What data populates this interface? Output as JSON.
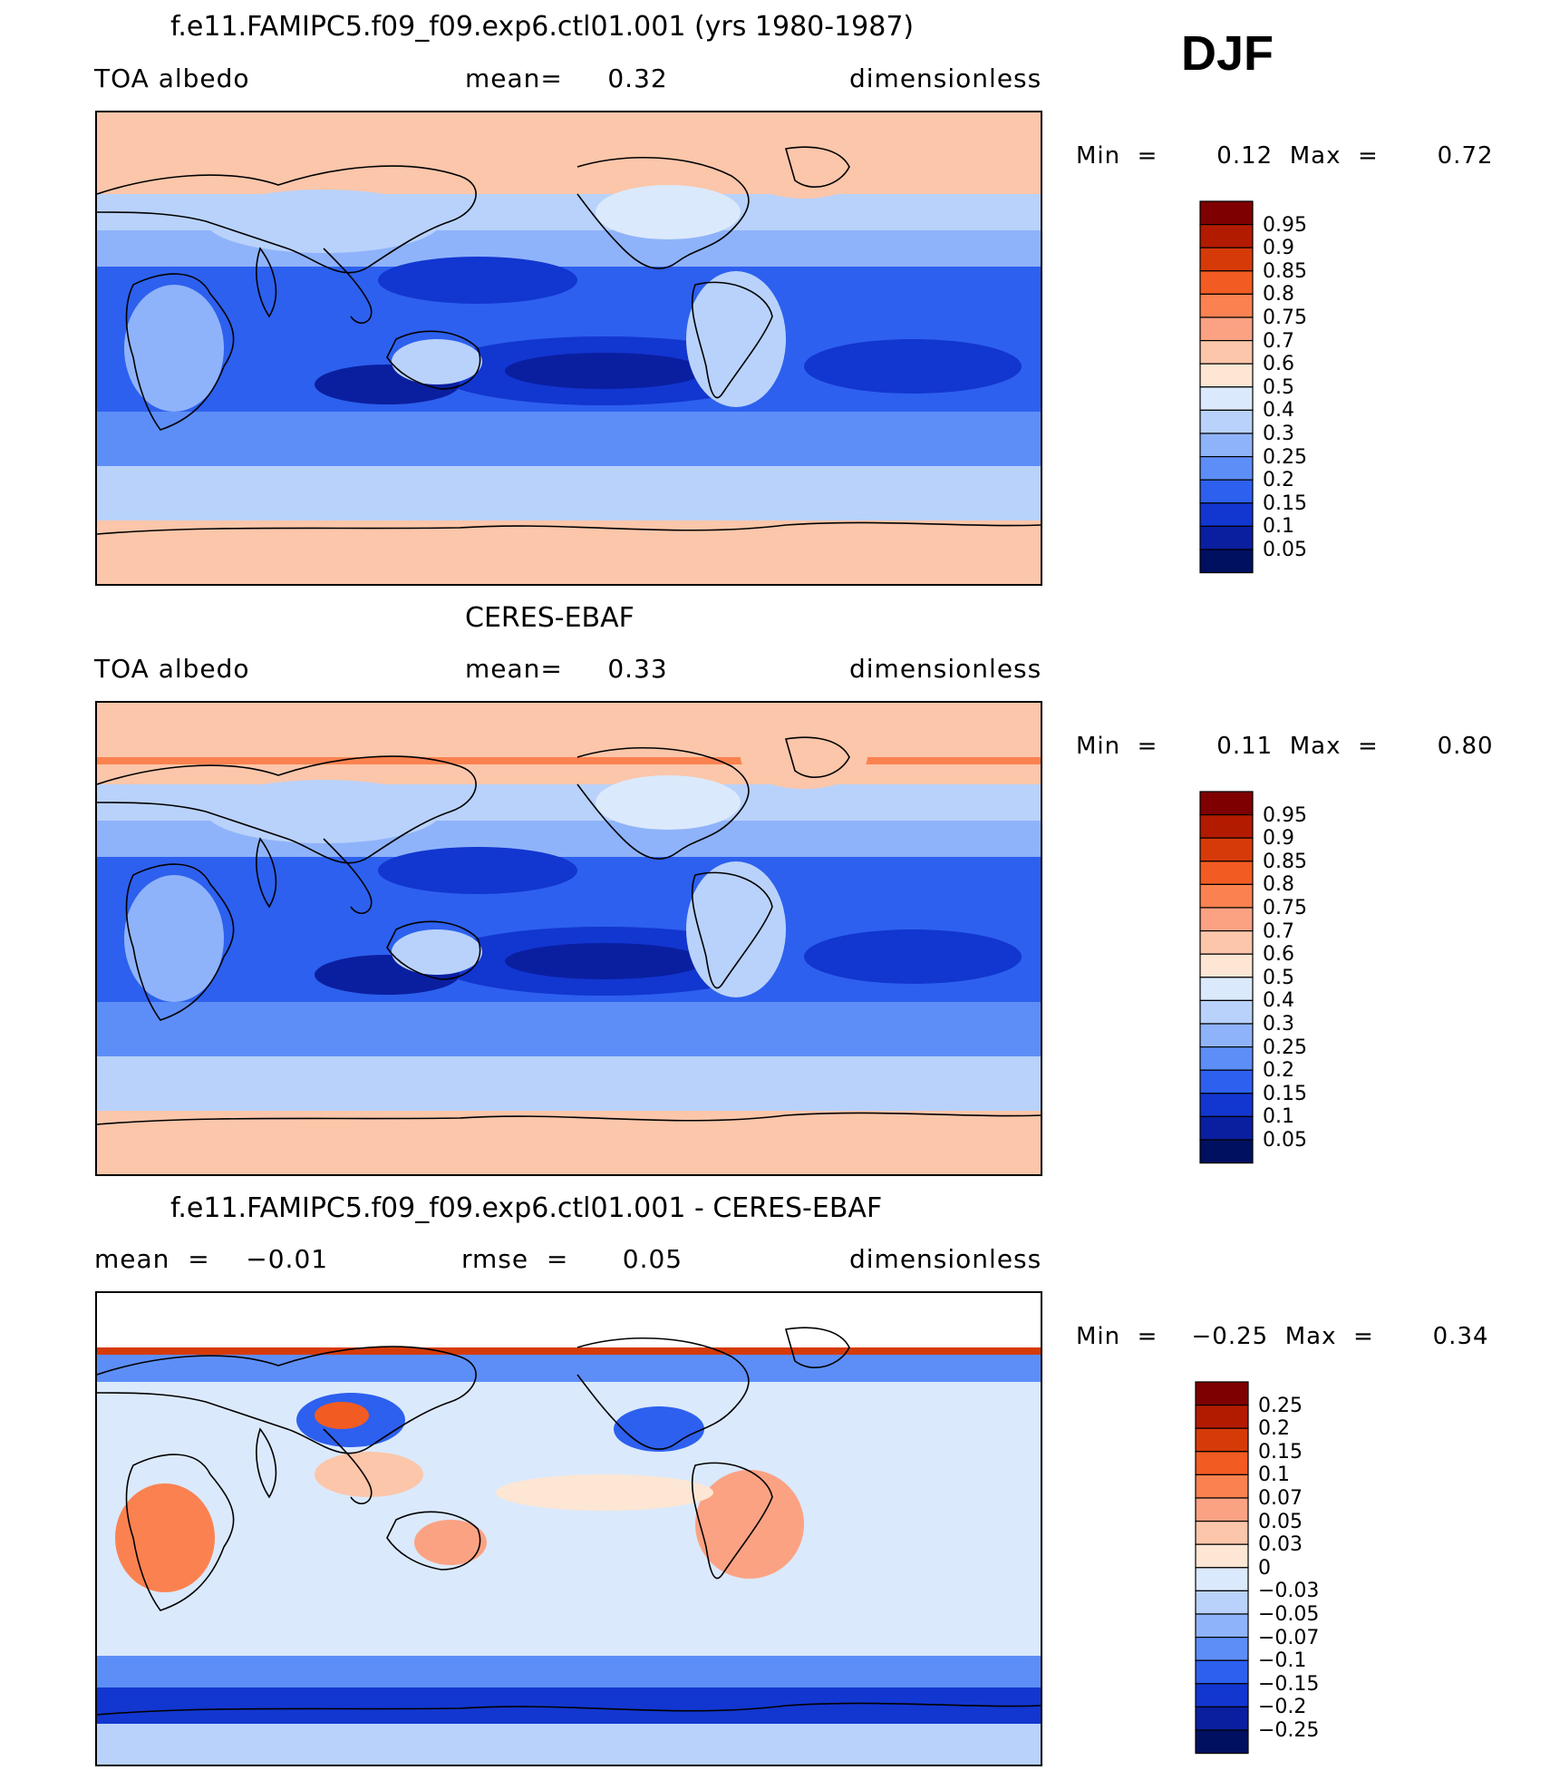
{
  "season": "DJF",
  "panels": [
    {
      "title": "f.e11.FAMIPC5.f09_f09.exp6.ctl01.001 (yrs 1980-1987)",
      "left_label": "TOA  albedo",
      "center_label": "mean=     0.32",
      "right_label": "dimensionless",
      "minmax": "Min  =       0.12  Max  =       0.72",
      "colorbar_labels": [
        "0.95",
        "0.9",
        "0.85",
        "0.8",
        "0.75",
        "0.7",
        "0.6",
        "0.5",
        "0.4",
        "0.3",
        "0.25",
        "0.2",
        "0.15",
        "0.1",
        "0.05"
      ],
      "colors": [
        "#7f0000",
        "#b31b00",
        "#d63a09",
        "#f25b22",
        "#fb8250",
        "#fba283",
        "#fbc6aa",
        "#fde6d3",
        "#dbe9fc",
        "#b9d2fb",
        "#8fb3fa",
        "#5d8ef7",
        "#2d60ee",
        "#1236d0",
        "#0a1fa0",
        "#001060"
      ],
      "regime": "albedo"
    },
    {
      "title": "CERES-EBAF",
      "left_label": "TOA  albedo",
      "center_label": "mean=     0.33",
      "right_label": "dimensionless",
      "minmax": "Min  =       0.11  Max  =       0.80",
      "colorbar_labels": [
        "0.95",
        "0.9",
        "0.85",
        "0.8",
        "0.75",
        "0.7",
        "0.6",
        "0.5",
        "0.4",
        "0.3",
        "0.25",
        "0.2",
        "0.15",
        "0.1",
        "0.05"
      ],
      "colors": [
        "#7f0000",
        "#b31b00",
        "#d63a09",
        "#f25b22",
        "#fb8250",
        "#fba283",
        "#fbc6aa",
        "#fde6d3",
        "#dbe9fc",
        "#b9d2fb",
        "#8fb3fa",
        "#5d8ef7",
        "#2d60ee",
        "#1236d0",
        "#0a1fa0",
        "#001060"
      ],
      "regime": "albedo"
    },
    {
      "title": "f.e11.FAMIPC5.f09_f09.exp6.ctl01.001 - CERES-EBAF",
      "left_label": "mean  =    −0.01",
      "center_label": "rmse  =      0.05",
      "right_label": "dimensionless",
      "minmax": "Min  =    −0.25  Max  =       0.34",
      "colorbar_labels": [
        "0.25",
        "0.2",
        "0.15",
        "0.1",
        "0.07",
        "0.05",
        "0.03",
        "0",
        "−0.03",
        "−0.05",
        "−0.07",
        "−0.1",
        "−0.15",
        "−0.2",
        "−0.25"
      ],
      "colors": [
        "#7f0000",
        "#b31b00",
        "#d63a09",
        "#f25b22",
        "#fb8250",
        "#fba283",
        "#fbc6aa",
        "#fde6d3",
        "#dbe9fc",
        "#b9d2fb",
        "#8fb3fa",
        "#5d8ef7",
        "#2d60ee",
        "#1236d0",
        "#0a1fa0",
        "#001060"
      ],
      "regime": "diff"
    }
  ],
  "chart_data": [
    {
      "type": "heatmap",
      "title": "f.e11.FAMIPC5.f09_f09.exp6.ctl01.001 (yrs 1980-1987)",
      "variable": "TOA  albedo",
      "units": "dimensionless",
      "mean": 0.32,
      "min": 0.12,
      "max": 0.72,
      "season": "DJF",
      "contour_levels": [
        0.05,
        0.1,
        0.15,
        0.2,
        0.25,
        0.3,
        0.4,
        0.5,
        0.6,
        0.7,
        0.75,
        0.8,
        0.85,
        0.9,
        0.95
      ]
    },
    {
      "type": "heatmap",
      "title": "CERES-EBAF",
      "variable": "TOA  albedo",
      "units": "dimensionless",
      "mean": 0.33,
      "min": 0.11,
      "max": 0.8,
      "season": "DJF",
      "contour_levels": [
        0.05,
        0.1,
        0.15,
        0.2,
        0.25,
        0.3,
        0.4,
        0.5,
        0.6,
        0.7,
        0.75,
        0.8,
        0.85,
        0.9,
        0.95
      ]
    },
    {
      "type": "heatmap",
      "title": "f.e11.FAMIPC5.f09_f09.exp6.ctl01.001 - CERES-EBAF",
      "units": "dimensionless",
      "mean": -0.01,
      "rmse": 0.05,
      "min": -0.25,
      "max": 0.34,
      "season": "DJF",
      "contour_levels": [
        -0.25,
        -0.2,
        -0.15,
        -0.1,
        -0.07,
        -0.05,
        -0.03,
        0,
        0.03,
        0.05,
        0.07,
        0.1,
        0.15,
        0.2,
        0.25
      ]
    }
  ]
}
